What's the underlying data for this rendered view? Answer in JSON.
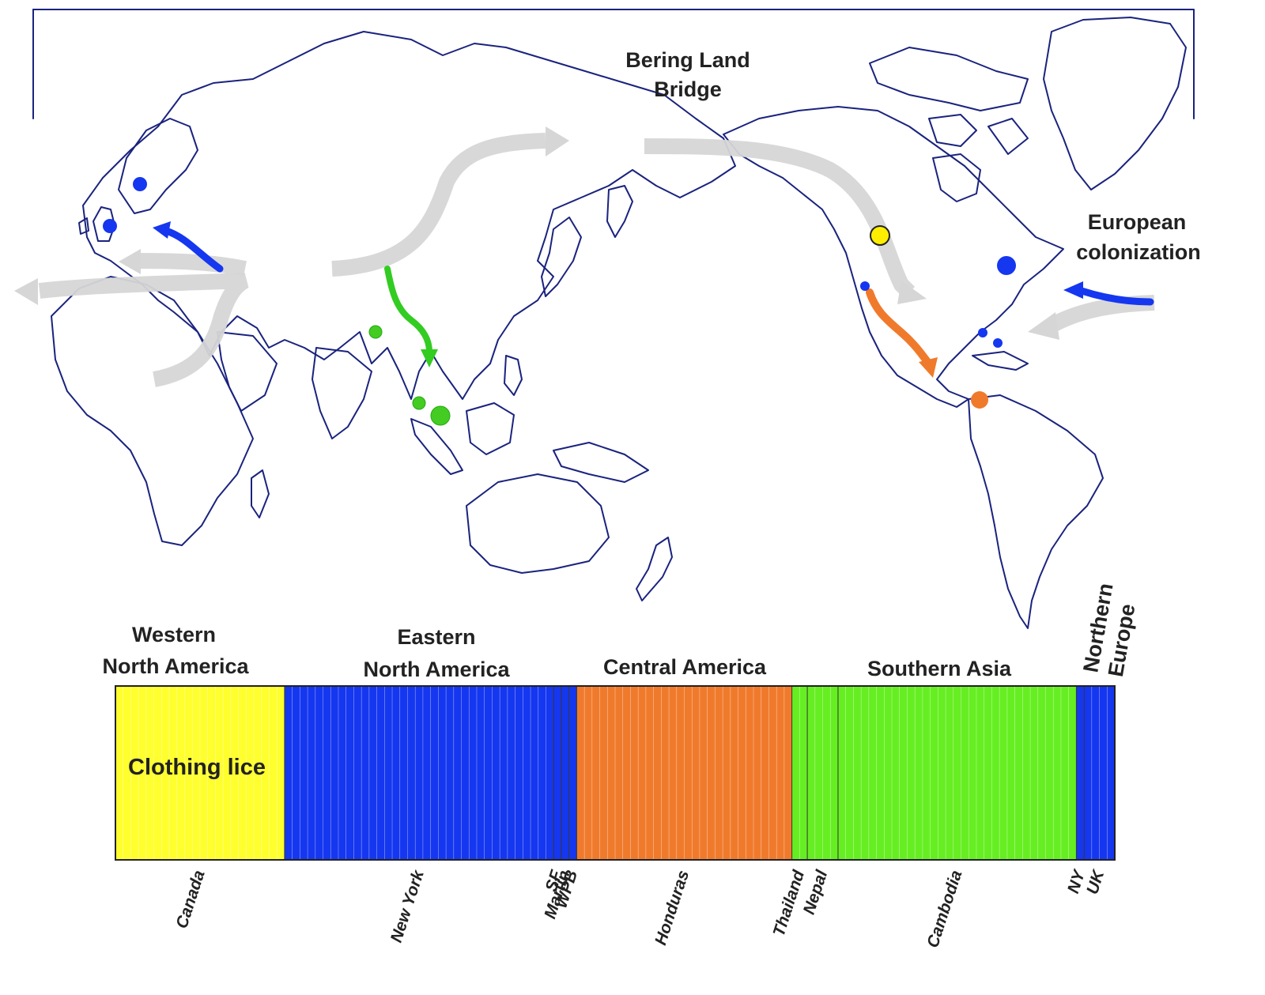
{
  "map": {
    "labels": {
      "bering": [
        "Bering Land",
        "Bridge"
      ],
      "european": [
        "European",
        "colonization"
      ]
    },
    "colors": {
      "coast": "#1a237e",
      "migration": "#d6d6d6",
      "western_na": "#ffff2e",
      "eastern_na": "#1537f0",
      "central_america": "#f07a2c",
      "southern_asia": "#66ee22"
    },
    "sample_points": [
      {
        "cluster": "northern-europe",
        "color": "#1537f0"
      },
      {
        "cluster": "northern-europe",
        "color": "#1537f0"
      },
      {
        "cluster": "southern-asia",
        "color": "#44cc22"
      },
      {
        "cluster": "southern-asia",
        "color": "#44cc22"
      },
      {
        "cluster": "southern-asia",
        "color": "#44cc22"
      },
      {
        "cluster": "western-north-america",
        "color": "#ffee00"
      },
      {
        "cluster": "eastern-north-america",
        "color": "#1537f0"
      },
      {
        "cluster": "eastern-north-america",
        "color": "#1537f0"
      },
      {
        "cluster": "eastern-north-america",
        "color": "#1537f0"
      },
      {
        "cluster": "eastern-north-america",
        "color": "#1537f0"
      },
      {
        "cluster": "central-america",
        "color": "#f07a2c"
      }
    ]
  },
  "structure_plot": {
    "inner_label": "Clothing lice",
    "clusters": [
      {
        "name": [
          "Western",
          "North America"
        ],
        "color": "#ffff2e"
      },
      {
        "name": [
          "Eastern",
          "North America"
        ],
        "color": "#1537f0"
      },
      {
        "name": [
          "Central America"
        ],
        "color": "#f07a2c"
      },
      {
        "name": [
          "Southern Asia"
        ],
        "color": "#66ee22"
      },
      {
        "name": [
          "Northern",
          "Europe"
        ],
        "color": "#1537f0"
      }
    ],
    "groups": [
      {
        "label": "Canada",
        "cluster": "yellow",
        "n": 22
      },
      {
        "label": "New York",
        "cluster": "blue",
        "n": 35
      },
      {
        "label": "SF",
        "cluster": "blue",
        "n": 1
      },
      {
        "label": "Martin",
        "cluster": "blue",
        "n": 1
      },
      {
        "label": "WPB",
        "cluster": "blue",
        "n": 1
      },
      {
        "label": "Honduras",
        "cluster": "orange",
        "n": 28
      },
      {
        "label": "Thailand",
        "cluster": "green",
        "n": 2
      },
      {
        "label": "Nepal",
        "cluster": "green",
        "n": 4
      },
      {
        "label": "Cambodia",
        "cluster": "green",
        "n": 31
      },
      {
        "label": "NY",
        "cluster": "blue",
        "n": 1
      },
      {
        "label": "UK",
        "cluster": "blue",
        "n": 4
      }
    ]
  }
}
